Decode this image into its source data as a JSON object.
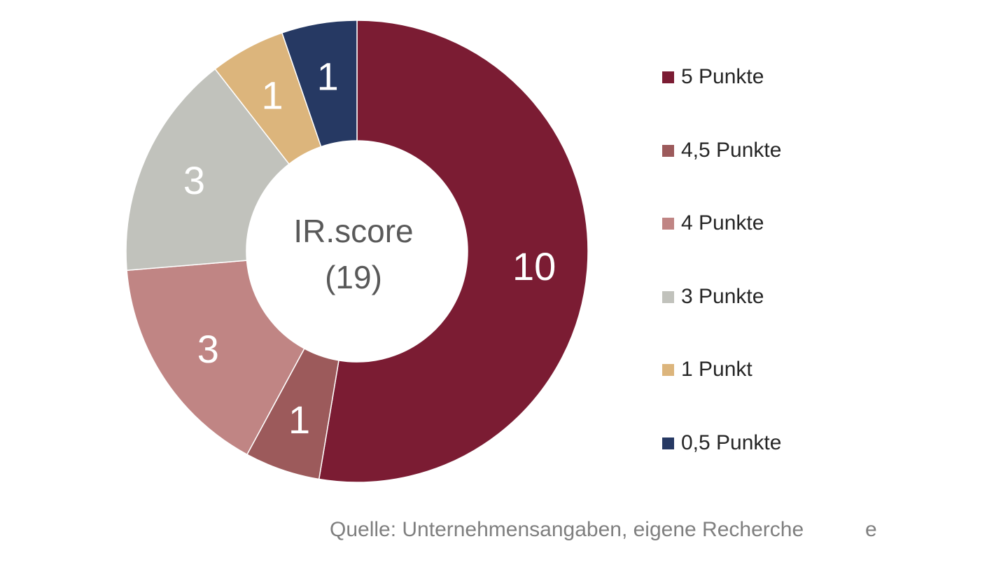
{
  "chart_data": {
    "type": "pie",
    "variant": "donut",
    "center_label": {
      "line1": "IR.score",
      "line2": "(19)"
    },
    "slices": [
      {
        "label": "5 Punkte",
        "value": 10,
        "color": "#7b1c33"
      },
      {
        "label": "4,5 Punkte",
        "value": 1,
        "color": "#9c5a5b"
      },
      {
        "label": "4 Punkte",
        "value": 3,
        "color": "#c08584"
      },
      {
        "label": "3 Punkte",
        "value": 3,
        "color": "#c1c2bc"
      },
      {
        "label": "1 Punkt",
        "value": 1,
        "color": "#dcb57c"
      },
      {
        "label": "0,5 Punkte",
        "value": 1,
        "color": "#263963"
      }
    ],
    "legend_position": "right"
  },
  "footer": {
    "source": "Quelle: Unternehmensangaben, eigene Recherche",
    "suffix": "e"
  }
}
